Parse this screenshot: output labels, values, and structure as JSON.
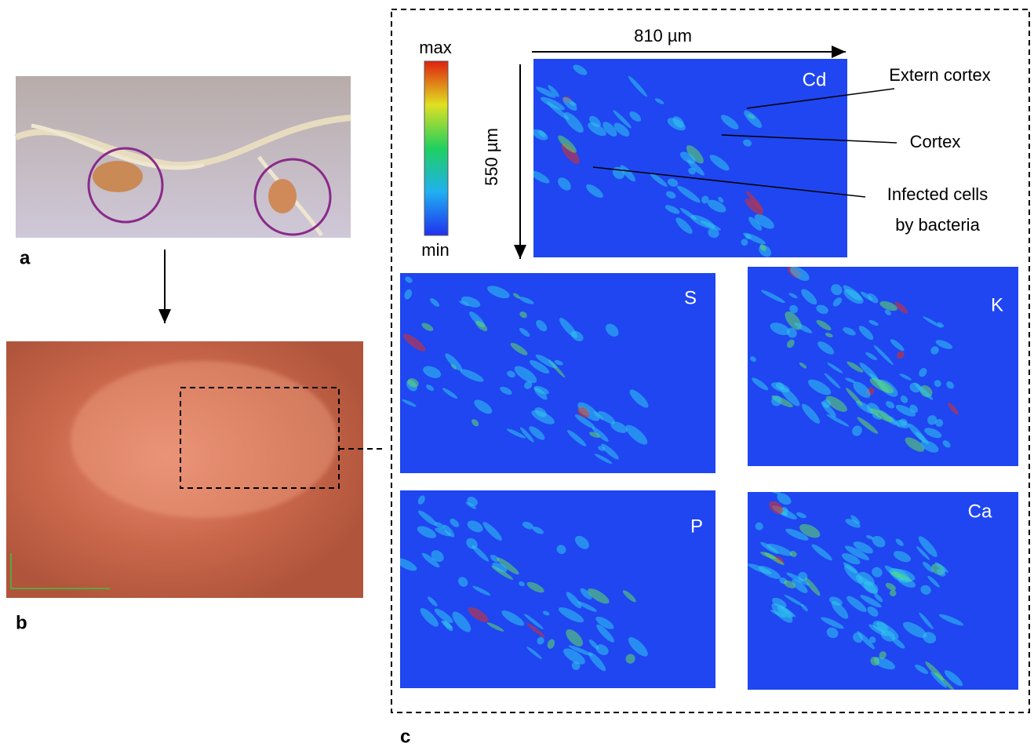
{
  "panels": {
    "a": "a",
    "b": "b",
    "c": "c"
  },
  "colorbar": {
    "max": "max",
    "min": "min"
  },
  "scale": {
    "width": "810 µm",
    "height": "550 µm"
  },
  "maps": [
    {
      "element": "Cd"
    },
    {
      "element": "S"
    },
    {
      "element": "K"
    },
    {
      "element": "P"
    },
    {
      "element": "Ca"
    }
  ],
  "annotations": {
    "extern_cortex": "Extern cortex",
    "cortex": "Cortex",
    "infected": [
      "Infected cells",
      "by bacteria"
    ]
  }
}
